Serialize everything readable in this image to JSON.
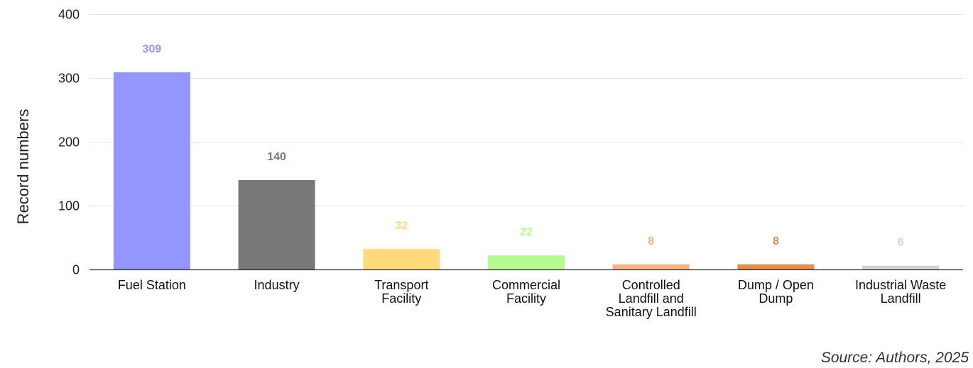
{
  "chart_data": {
    "type": "bar",
    "categories": [
      "Fuel Station",
      "Industry",
      "Transport Facility",
      "Commercial Facility",
      "Controlled Landfill and Sanitary Landfill",
      "Dump / Open Dump",
      "Industrial Waste Landfill"
    ],
    "category_lines": [
      [
        "Fuel Station"
      ],
      [
        "Industry"
      ],
      [
        "Transport",
        "Facility"
      ],
      [
        "Commercial",
        "Facility"
      ],
      [
        "Controlled",
        "Landfill and",
        "Sanitary Landfill"
      ],
      [
        "Dump / Open",
        "Dump"
      ],
      [
        "Industrial Waste",
        "Landfill"
      ]
    ],
    "values": [
      309,
      140,
      32,
      22,
      8,
      8,
      6
    ],
    "colors": [
      "#9296fd",
      "#787876",
      "#ffd97a",
      "#b5fb8e",
      "#f4b483",
      "#e08d4f",
      "#d3d3d3"
    ],
    "title": "",
    "xlabel": "",
    "ylabel": "Record numbers",
    "ylim": [
      0,
      400
    ],
    "yticks": [
      0,
      100,
      200,
      300,
      400
    ],
    "grid": true,
    "legend": "none",
    "data_labels": true
  },
  "source_note": "Source: Authors, 2025"
}
